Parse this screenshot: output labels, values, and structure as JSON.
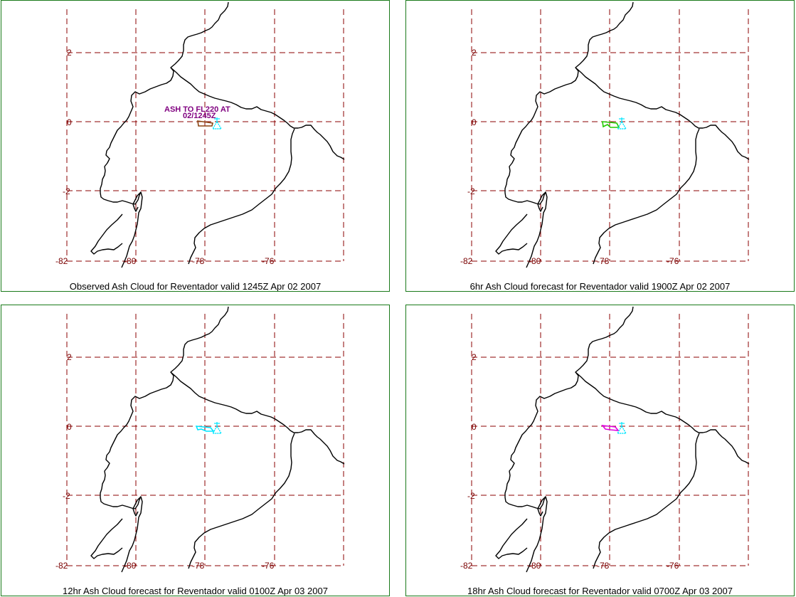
{
  "colors": {
    "frame": "#1a7a1a",
    "grid": "#8b0000",
    "coast": "#000000",
    "tick_label": "#7a0000",
    "volcano_marker": "#00e5ff",
    "annotation": "#800080"
  },
  "map": {
    "lon_ticks": [
      "-82",
      "-80",
      "-78",
      "-76"
    ],
    "lat_ticks": [
      "2",
      "0",
      "-2"
    ]
  },
  "panels": [
    {
      "caption": "Observed Ash Cloud for Reventador valid 1245Z Apr 02 2007",
      "cloud_color": "#8b4513",
      "annotation_line1": "ASH TO FL220 AT",
      "annotation_line2": "02/1245Z"
    },
    {
      "caption": "6hr Ash Cloud forecast for Reventador valid 1900Z Apr 02 2007",
      "cloud_color": "#22cc00"
    },
    {
      "caption": "12hr Ash Cloud forecast for Reventador valid 0100Z Apr 03 2007",
      "cloud_color": "#00e5ff"
    },
    {
      "caption": "18hr Ash Cloud forecast for Reventador valid 0700Z Apr 03 2007",
      "cloud_color": "#e000e0"
    }
  ]
}
